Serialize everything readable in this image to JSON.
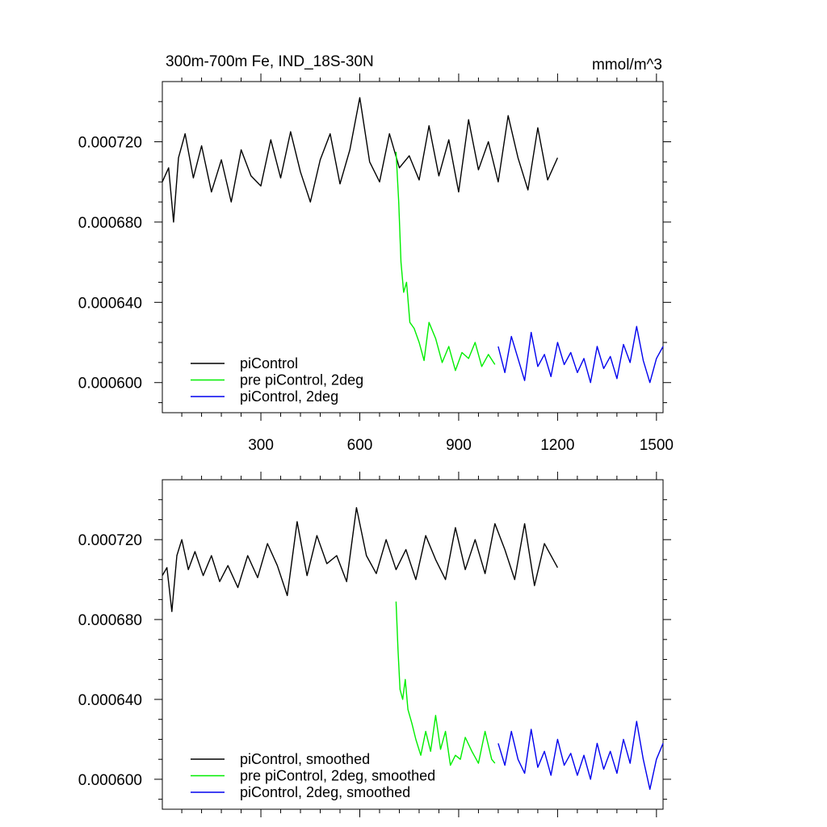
{
  "chart_data": [
    {
      "type": "line",
      "title_left": "300m-700m Fe, IND_18S-30N",
      "title_right": "mmol/m^3",
      "xlim": [
        1,
        1520
      ],
      "ylim": [
        0.000585,
        0.00075
      ],
      "xticks": [
        300,
        600,
        900,
        1200,
        1500
      ],
      "xtick_labels": [
        "300",
        "600",
        "900",
        "1200",
        "1500"
      ],
      "yticks": [
        0.0006,
        0.00064,
        0.00068,
        0.00072
      ],
      "ytick_labels": [
        "0.000600",
        "0.000640",
        "0.000680",
        "0.000720"
      ],
      "grid": false,
      "legend_position": "bottom-left",
      "series": [
        {
          "name": "piControl",
          "color": "#000000",
          "x": [
            1,
            20,
            35,
            50,
            70,
            95,
            120,
            150,
            180,
            210,
            240,
            270,
            300,
            330,
            360,
            390,
            420,
            450,
            480,
            510,
            540,
            570,
            600,
            630,
            660,
            690,
            720,
            750,
            780,
            810,
            840,
            870,
            900,
            930,
            960,
            990,
            1020,
            1050,
            1080,
            1110,
            1140,
            1170,
            1200
          ],
          "values": [
            0.0007,
            0.000707,
            0.00068,
            0.000712,
            0.000724,
            0.000702,
            0.000718,
            0.000695,
            0.000711,
            0.00069,
            0.000716,
            0.000703,
            0.000698,
            0.000721,
            0.000702,
            0.000725,
            0.000705,
            0.00069,
            0.000711,
            0.000724,
            0.000699,
            0.000716,
            0.000742,
            0.00071,
            0.0007,
            0.000724,
            0.000707,
            0.000713,
            0.000701,
            0.000728,
            0.000703,
            0.000721,
            0.000695,
            0.000731,
            0.000706,
            0.00072,
            0.0007,
            0.000733,
            0.000712,
            0.000696,
            0.000727,
            0.000701,
            0.000712
          ]
        },
        {
          "name": "pre piControl, 2deg",
          "color": "#00ee00",
          "x": [
            710,
            718,
            725,
            733,
            742,
            752,
            765,
            780,
            795,
            810,
            830,
            850,
            870,
            890,
            910,
            930,
            950,
            970,
            990,
            1010
          ],
          "values": [
            0.000715,
            0.00069,
            0.00066,
            0.000645,
            0.00065,
            0.00063,
            0.000627,
            0.00062,
            0.000611,
            0.00063,
            0.000622,
            0.00061,
            0.000618,
            0.000606,
            0.000615,
            0.000612,
            0.00062,
            0.000608,
            0.000614,
            0.000609
          ]
        },
        {
          "name": "piControl, 2deg",
          "color": "#0000ee",
          "x": [
            1020,
            1040,
            1060,
            1080,
            1100,
            1120,
            1140,
            1160,
            1180,
            1200,
            1220,
            1240,
            1260,
            1280,
            1300,
            1320,
            1340,
            1360,
            1380,
            1400,
            1420,
            1440,
            1460,
            1480,
            1500,
            1520
          ],
          "values": [
            0.000618,
            0.000605,
            0.000623,
            0.000612,
            0.000601,
            0.000625,
            0.000608,
            0.000614,
            0.000603,
            0.00062,
            0.000609,
            0.000615,
            0.000605,
            0.000612,
            0.0006,
            0.000618,
            0.000607,
            0.000613,
            0.000602,
            0.000619,
            0.00061,
            0.000628,
            0.000611,
            0.0006,
            0.000612,
            0.000618
          ]
        }
      ]
    },
    {
      "type": "line",
      "xlim": [
        1,
        1520
      ],
      "ylim": [
        0.000585,
        0.00075
      ],
      "xticks": [
        300,
        600,
        900,
        1200,
        1500
      ],
      "yticks": [
        0.0006,
        0.00064,
        0.00068,
        0.00072
      ],
      "ytick_labels": [
        "0.000600",
        "0.000640",
        "0.000680",
        "0.000720"
      ],
      "grid": false,
      "legend_position": "bottom-left",
      "series": [
        {
          "name": "piControl, smoothed",
          "color": "#000000",
          "x": [
            1,
            15,
            30,
            45,
            60,
            80,
            100,
            125,
            150,
            175,
            200,
            230,
            260,
            290,
            320,
            350,
            380,
            410,
            440,
            470,
            500,
            530,
            560,
            590,
            620,
            650,
            680,
            710,
            740,
            770,
            800,
            830,
            860,
            890,
            920,
            950,
            980,
            1010,
            1040,
            1070,
            1100,
            1130,
            1160,
            1200
          ],
          "values": [
            0.000702,
            0.000706,
            0.000684,
            0.000712,
            0.00072,
            0.000705,
            0.000714,
            0.000702,
            0.000712,
            0.000699,
            0.000707,
            0.000696,
            0.000712,
            0.000701,
            0.000718,
            0.000707,
            0.000692,
            0.000729,
            0.000702,
            0.000722,
            0.000708,
            0.000712,
            0.000699,
            0.000736,
            0.000712,
            0.000703,
            0.00072,
            0.000705,
            0.000715,
            0.0007,
            0.000722,
            0.00071,
            0.0007,
            0.000726,
            0.000705,
            0.00072,
            0.000703,
            0.000728,
            0.000715,
            0.0007,
            0.000728,
            0.000697,
            0.000718,
            0.000706
          ]
        },
        {
          "name": "pre piControl, 2deg, smoothed",
          "color": "#00ee00",
          "x": [
            710,
            716,
            722,
            730,
            738,
            746,
            758,
            770,
            785,
            800,
            815,
            830,
            845,
            860,
            875,
            890,
            905,
            920,
            940,
            960,
            980,
            1000,
            1010
          ],
          "values": [
            0.000689,
            0.000665,
            0.000645,
            0.00064,
            0.00065,
            0.000635,
            0.000628,
            0.00062,
            0.000612,
            0.000624,
            0.000614,
            0.000632,
            0.000615,
            0.000624,
            0.000607,
            0.000612,
            0.00061,
            0.000621,
            0.000614,
            0.000608,
            0.000624,
            0.00061,
            0.000608
          ]
        },
        {
          "name": "piControl, 2deg, smoothed",
          "color": "#0000ee",
          "x": [
            1020,
            1040,
            1060,
            1080,
            1100,
            1120,
            1140,
            1160,
            1180,
            1200,
            1220,
            1240,
            1260,
            1280,
            1300,
            1320,
            1340,
            1360,
            1380,
            1400,
            1420,
            1440,
            1460,
            1480,
            1500,
            1520
          ],
          "values": [
            0.000618,
            0.000607,
            0.000624,
            0.00061,
            0.000603,
            0.000625,
            0.000606,
            0.000614,
            0.000602,
            0.00062,
            0.000607,
            0.000613,
            0.000602,
            0.000612,
            0.0006,
            0.000618,
            0.000605,
            0.000614,
            0.000603,
            0.00062,
            0.000608,
            0.000629,
            0.00061,
            0.000595,
            0.00061,
            0.000618
          ]
        }
      ]
    }
  ]
}
